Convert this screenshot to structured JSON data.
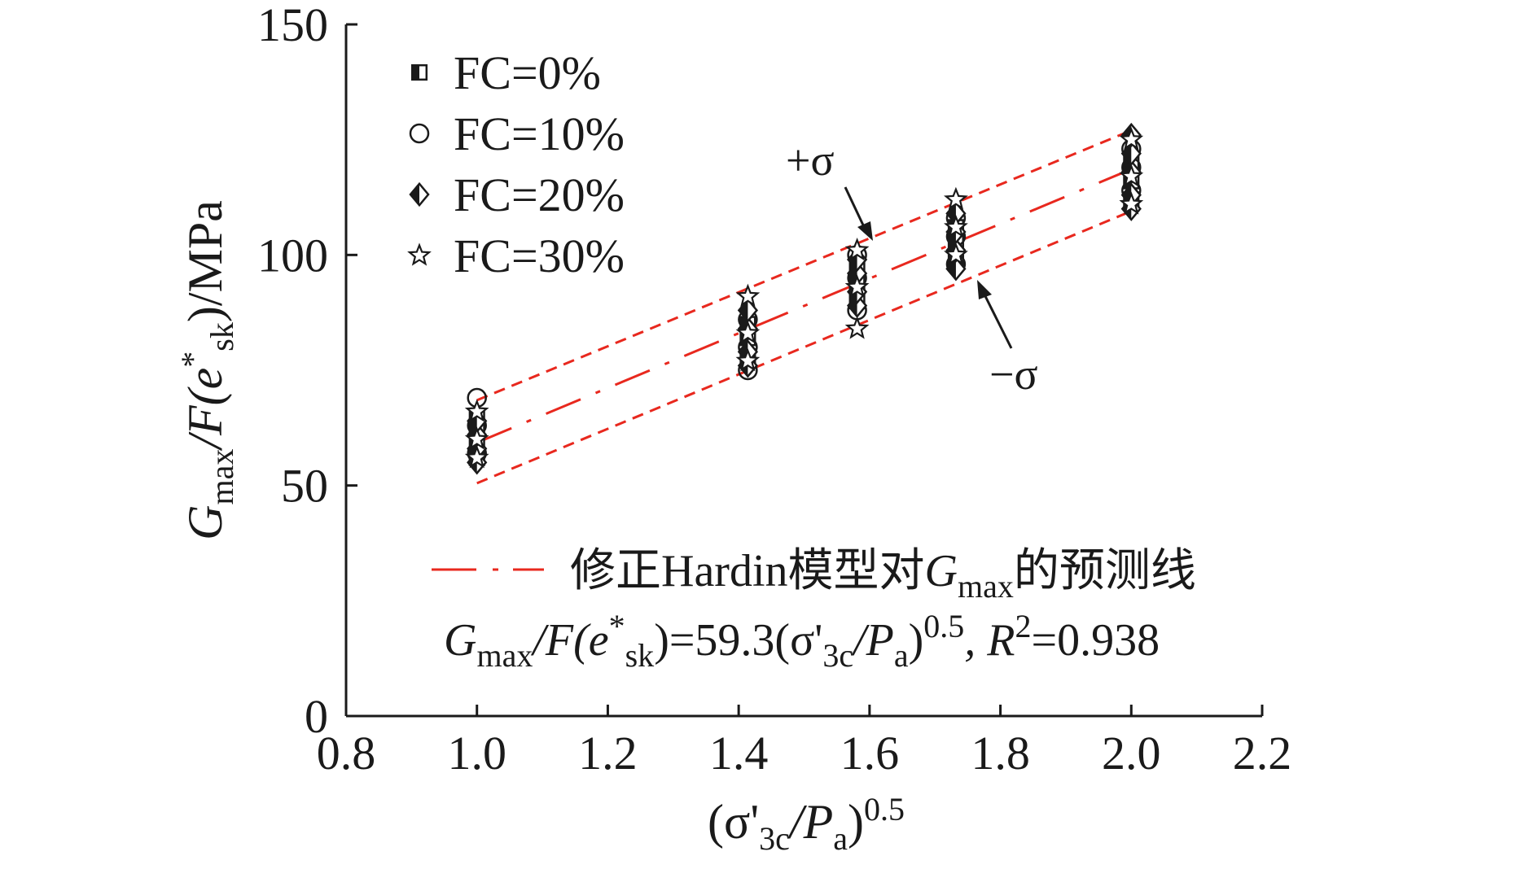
{
  "chart_data": {
    "type": "scatter",
    "xlabel": "(σ'3c/Pa)^0.5",
    "ylabel": "Gmax/F(e*sk)/MPa",
    "xlim": [
      0.8,
      2.2
    ],
    "ylim": [
      0,
      150
    ],
    "xticks": [
      "0.8",
      "1.0",
      "1.2",
      "1.4",
      "1.6",
      "1.8",
      "2.0",
      "2.2"
    ],
    "yticks": [
      "0",
      "50",
      "100",
      "150"
    ],
    "legend_position": "top-left",
    "series": [
      {
        "name": "FC=0%",
        "marker": "half-filled-square",
        "points": [
          [
            1.0,
            56
          ],
          [
            1.0,
            59
          ],
          [
            1.0,
            62
          ],
          [
            1.0,
            65
          ],
          [
            1.414,
            78
          ],
          [
            1.414,
            82
          ],
          [
            1.414,
            85
          ],
          [
            1.581,
            90
          ],
          [
            1.581,
            94
          ],
          [
            1.581,
            97
          ],
          [
            1.732,
            99
          ],
          [
            1.732,
            103
          ],
          [
            1.732,
            106
          ],
          [
            2.0,
            112
          ],
          [
            2.0,
            116
          ],
          [
            2.0,
            120
          ]
        ]
      },
      {
        "name": "FC=10%",
        "marker": "open-circle",
        "points": [
          [
            1.0,
            57
          ],
          [
            1.0,
            63
          ],
          [
            1.0,
            69
          ],
          [
            1.414,
            75
          ],
          [
            1.414,
            80
          ],
          [
            1.414,
            86
          ],
          [
            1.581,
            88
          ],
          [
            1.581,
            95
          ],
          [
            1.581,
            100
          ],
          [
            1.732,
            98
          ],
          [
            1.732,
            104
          ],
          [
            1.732,
            108
          ],
          [
            2.0,
            114
          ],
          [
            2.0,
            119
          ],
          [
            2.0,
            123
          ]
        ]
      },
      {
        "name": "FC=20%",
        "marker": "half-filled-diamond",
        "points": [
          [
            1.0,
            55
          ],
          [
            1.0,
            58
          ],
          [
            1.0,
            61
          ],
          [
            1.0,
            64
          ],
          [
            1.414,
            76
          ],
          [
            1.414,
            79
          ],
          [
            1.414,
            84
          ],
          [
            1.414,
            88
          ],
          [
            1.581,
            89
          ],
          [
            1.581,
            92
          ],
          [
            1.581,
            96
          ],
          [
            1.581,
            99
          ],
          [
            1.732,
            97
          ],
          [
            1.732,
            101
          ],
          [
            1.732,
            105
          ],
          [
            1.732,
            109
          ],
          [
            2.0,
            110
          ],
          [
            2.0,
            113
          ],
          [
            2.0,
            118
          ],
          [
            2.0,
            122
          ],
          [
            2.0,
            126
          ]
        ]
      },
      {
        "name": "FC=30%",
        "marker": "open-star",
        "points": [
          [
            1.0,
            56
          ],
          [
            1.0,
            60
          ],
          [
            1.0,
            66
          ],
          [
            1.414,
            77
          ],
          [
            1.414,
            83
          ],
          [
            1.414,
            91
          ],
          [
            1.581,
            84
          ],
          [
            1.581,
            93
          ],
          [
            1.581,
            101
          ],
          [
            1.732,
            100
          ],
          [
            1.732,
            106
          ],
          [
            1.732,
            112
          ],
          [
            2.0,
            111
          ],
          [
            2.0,
            117
          ],
          [
            2.0,
            125
          ]
        ]
      }
    ],
    "lines": [
      {
        "name": "修正Hardin模型对Gmax的预测线",
        "style": "dash-dot",
        "color": "#e8281e",
        "slope": 59.3
      },
      {
        "name": "+σ",
        "style": "dashed",
        "color": "#e8281e",
        "x": [
          1.0,
          2.0
        ],
        "y": [
          68.5,
          127
        ]
      },
      {
        "name": "−σ",
        "style": "dashed",
        "color": "#e8281e",
        "x": [
          1.0,
          2.0
        ],
        "y": [
          50.5,
          109.5
        ]
      }
    ],
    "annotations": {
      "plus_sigma": "+σ",
      "minus_sigma": "−σ",
      "fit_legend": "修正Hardin模型对Gmax的预测线",
      "equation": "Gmax/F(e*sk)=59.3(σ'3c/Pa)^0.5, R²=0.938"
    }
  },
  "text": {
    "legend": [
      "FC=0%",
      "FC=10%",
      "FC=20%",
      "FC=30%"
    ],
    "ylabel_parts": {
      "g": "G",
      "max": "max",
      "mid": "/F(e",
      "star": "*",
      "sk": "sk",
      "tail": ")/MPa"
    },
    "xlabel_parts": {
      "open": "(σ'",
      "c3": "3c",
      "slash": "/P",
      "a": "a",
      "close": ")",
      "exp": "0.5"
    },
    "fit_parts": {
      "pre": "修正Hardin模型对",
      "g": "G",
      "max": "max",
      "post": "的预测线"
    },
    "eq_parts": {
      "g": "G",
      "max": "max",
      "f": "/F(e",
      "star": "*",
      "sk": "sk",
      "mid": ")=59.3(σ'",
      "c3": "3c",
      "slash": "/P",
      "a": "a",
      "close": ")",
      "exp": "0.5",
      "r": ", R",
      "two": "2",
      "rv": "=0.938"
    },
    "plus_sigma": "+σ",
    "minus_sigma": "−σ"
  },
  "colors": {
    "fit": "#e8281e",
    "ink": "#1a1a1a"
  }
}
